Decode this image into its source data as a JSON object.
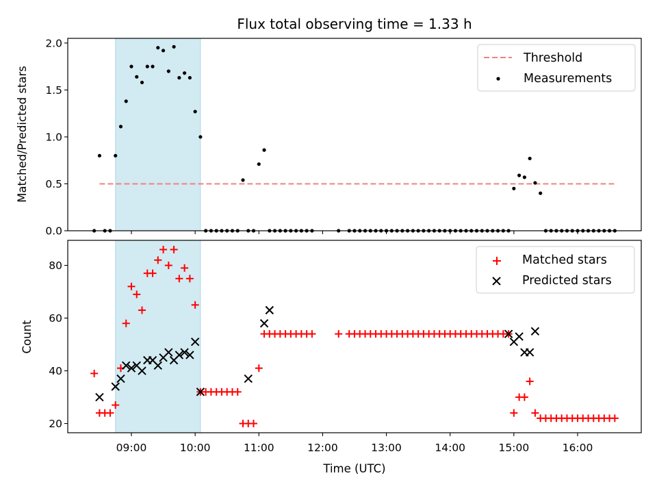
{
  "chart_data": {
    "title": "Flux total observing time = 1.33 h",
    "xlabel": "Time (UTC)",
    "x_ticks": [
      "09:00",
      "10:00",
      "11:00",
      "12:00",
      "13:00",
      "14:00",
      "15:00",
      "16:00"
    ],
    "shaded_region": {
      "from": "08:45",
      "to": "10:05",
      "color": "#add8e6"
    },
    "panels": [
      {
        "type": "scatter",
        "ylabel": "Matched/Predicted stars",
        "ylim": [
          0,
          2.05
        ],
        "y_ticks": [
          "0.0",
          "0.5",
          "1.0",
          "1.5",
          "2.0"
        ],
        "legend_position": "top-right",
        "threshold": {
          "name": "Threshold",
          "value": 0.5,
          "x_range": [
            "08:30",
            "16:35"
          ],
          "color": "#f08080",
          "style": "dashed"
        },
        "series": [
          {
            "name": "Measurements",
            "color": "#000000",
            "marker": "dot",
            "x": [
              "08:25",
              "08:30",
              "08:35",
              "08:40",
              "08:45",
              "08:50",
              "08:55",
              "09:00",
              "09:05",
              "09:10",
              "09:15",
              "09:20",
              "09:25",
              "09:30",
              "09:35",
              "09:40",
              "09:45",
              "09:50",
              "09:55",
              "10:00",
              "10:05",
              "10:10",
              "10:15",
              "10:20",
              "10:25",
              "10:30",
              "10:35",
              "10:40",
              "10:45",
              "10:50",
              "10:55",
              "11:00",
              "11:05",
              "11:10",
              "11:15",
              "11:20",
              "11:25",
              "11:30",
              "11:35",
              "11:40",
              "11:45",
              "11:50",
              "12:15",
              "12:25",
              "12:30",
              "12:35",
              "12:40",
              "12:45",
              "12:50",
              "12:55",
              "13:00",
              "13:05",
              "13:10",
              "13:15",
              "13:20",
              "13:25",
              "13:30",
              "13:35",
              "13:40",
              "13:45",
              "13:50",
              "13:55",
              "14:00",
              "14:05",
              "14:10",
              "14:15",
              "14:20",
              "14:25",
              "14:30",
              "14:35",
              "14:40",
              "14:45",
              "14:50",
              "14:55",
              "15:00",
              "15:05",
              "15:10",
              "15:15",
              "15:20",
              "15:25",
              "15:30",
              "15:35",
              "15:40",
              "15:45",
              "15:50",
              "15:55",
              "16:00",
              "16:05",
              "16:10",
              "16:15",
              "16:20",
              "16:25",
              "16:30",
              "16:35"
            ],
            "y": [
              0,
              0.8,
              0,
              0,
              0.8,
              1.11,
              1.38,
              1.75,
              1.64,
              1.58,
              1.75,
              1.75,
              1.95,
              1.92,
              1.7,
              1.96,
              1.63,
              1.68,
              1.63,
              1.27,
              1.0,
              0,
              0,
              0,
              0,
              0,
              0,
              0,
              0.54,
              0,
              0,
              0.71,
              0.86,
              0,
              0,
              0,
              0,
              0,
              0,
              0,
              0,
              0,
              0,
              0,
              0,
              0,
              0,
              0,
              0,
              0,
              0,
              0,
              0,
              0,
              0,
              0,
              0,
              0,
              0,
              0,
              0,
              0,
              0,
              0,
              0,
              0,
              0,
              0,
              0,
              0,
              0,
              0,
              0,
              0,
              0.45,
              0.59,
              0.57,
              0.77,
              0.51,
              0.4,
              0,
              0,
              0,
              0,
              0,
              0,
              0,
              0,
              0,
              0,
              0,
              0,
              0,
              0
            ]
          }
        ]
      },
      {
        "type": "scatter",
        "ylabel": "Count",
        "ylim": [
          16.5,
          89.5
        ],
        "y_ticks": [
          "20",
          "40",
          "60",
          "80"
        ],
        "legend_position": "top-right",
        "series": [
          {
            "name": "Matched stars",
            "color": "#ff0000",
            "marker": "plus",
            "x": [
              "08:25",
              "08:30",
              "08:35",
              "08:40",
              "08:45",
              "08:50",
              "08:55",
              "09:00",
              "09:05",
              "09:10",
              "09:15",
              "09:20",
              "09:25",
              "09:30",
              "09:35",
              "09:40",
              "09:45",
              "09:50",
              "09:55",
              "10:00",
              "10:05",
              "10:10",
              "10:15",
              "10:20",
              "10:25",
              "10:30",
              "10:35",
              "10:40",
              "10:45",
              "10:50",
              "10:55",
              "11:00",
              "11:05",
              "11:10",
              "11:15",
              "11:20",
              "11:25",
              "11:30",
              "11:35",
              "11:40",
              "11:45",
              "11:50",
              "12:15",
              "12:25",
              "12:30",
              "12:35",
              "12:40",
              "12:45",
              "12:50",
              "12:55",
              "13:00",
              "13:05",
              "13:10",
              "13:15",
              "13:20",
              "13:25",
              "13:30",
              "13:35",
              "13:40",
              "13:45",
              "13:50",
              "13:55",
              "14:00",
              "14:05",
              "14:10",
              "14:15",
              "14:20",
              "14:25",
              "14:30",
              "14:35",
              "14:40",
              "14:45",
              "14:50",
              "14:55",
              "15:00",
              "15:05",
              "15:10",
              "15:15",
              "15:20",
              "15:25",
              "15:30",
              "15:35",
              "15:40",
              "15:45",
              "15:50",
              "15:55",
              "16:00",
              "16:05",
              "16:10",
              "16:15",
              "16:20",
              "16:25",
              "16:30",
              "16:35"
            ],
            "y": [
              39,
              24,
              24,
              24,
              27,
              41,
              58,
              72,
              69,
              63,
              77,
              77,
              82,
              86,
              80,
              86,
              75,
              79,
              75,
              65,
              32,
              32,
              32,
              32,
              32,
              32,
              32,
              32,
              20,
              20,
              20,
              41,
              54,
              54,
              54,
              54,
              54,
              54,
              54,
              54,
              54,
              54,
              54,
              54,
              54,
              54,
              54,
              54,
              54,
              54,
              54,
              54,
              54,
              54,
              54,
              54,
              54,
              54,
              54,
              54,
              54,
              54,
              54,
              54,
              54,
              54,
              54,
              54,
              54,
              54,
              54,
              54,
              54,
              54,
              24,
              30,
              30,
              36,
              24,
              22,
              22,
              22,
              22,
              22,
              22,
              22,
              22,
              22,
              22,
              22,
              22,
              22,
              22,
              22
            ]
          },
          {
            "name": "Predicted stars",
            "color": "#000000",
            "marker": "cross",
            "x": [
              "08:30",
              "08:45",
              "08:50",
              "08:55",
              "09:00",
              "09:05",
              "09:10",
              "09:15",
              "09:20",
              "09:25",
              "09:30",
              "09:35",
              "09:40",
              "09:45",
              "09:50",
              "09:55",
              "10:00",
              "10:05",
              "10:50",
              "11:05",
              "11:10",
              "14:55",
              "15:00",
              "15:05",
              "15:10",
              "15:15",
              "15:20"
            ],
            "y": [
              30,
              34,
              37,
              42,
              41,
              42,
              40,
              44,
              44,
              42,
              45,
              47,
              44,
              46,
              47,
              46,
              51,
              32,
              37,
              58,
              63,
              54,
              51,
              53,
              47,
              47,
              55
            ]
          }
        ]
      }
    ]
  }
}
